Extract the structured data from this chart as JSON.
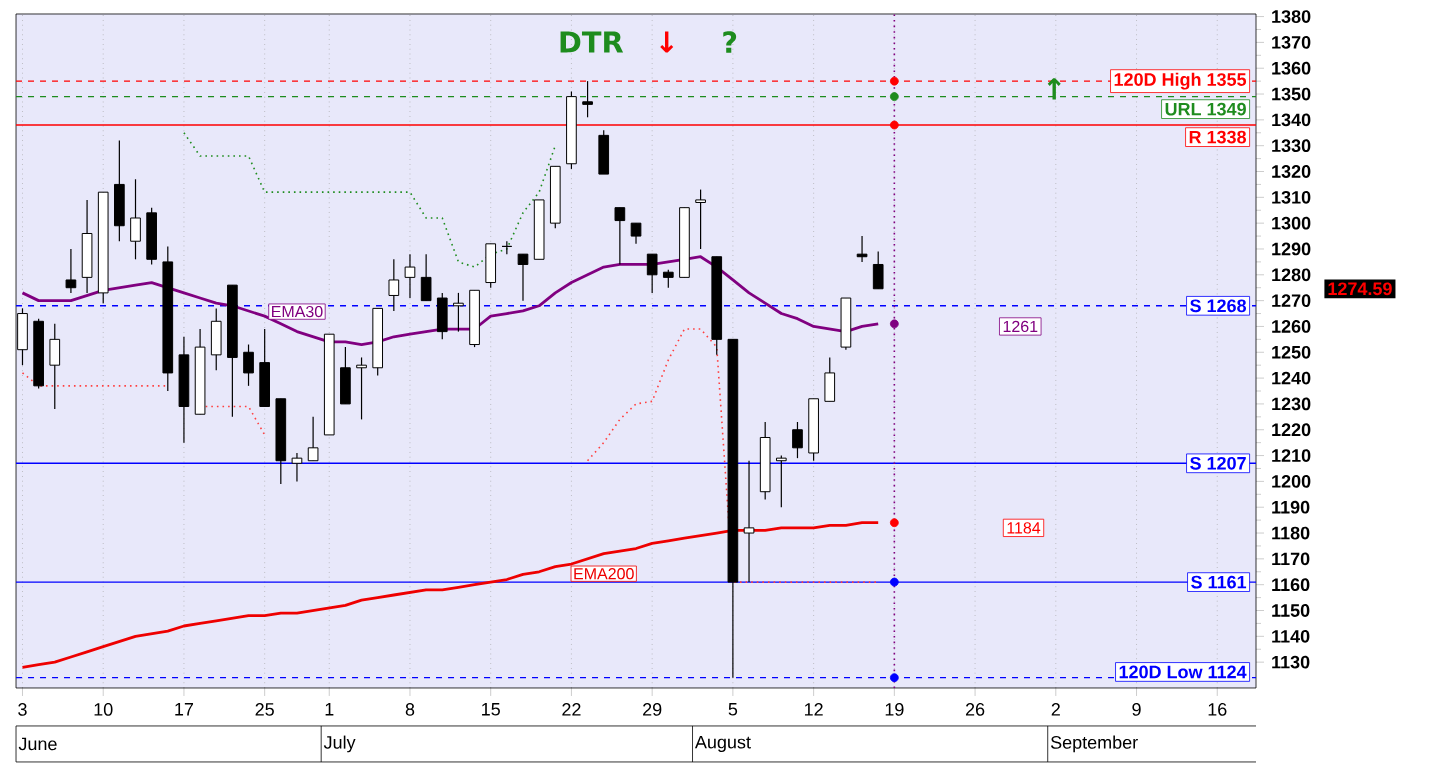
{
  "chart_data": {
    "type": "candlestick",
    "categories": [
      "3",
      null,
      null,
      null,
      null,
      "10",
      null,
      null,
      null,
      null,
      "17",
      null,
      null,
      null,
      null,
      "25",
      null,
      null,
      null,
      "1",
      null,
      null,
      null,
      null,
      "8",
      null,
      null,
      null,
      null,
      "15",
      null,
      null,
      null,
      null,
      "22",
      null,
      null,
      null,
      null,
      "29",
      null,
      null,
      null,
      null,
      "5",
      null,
      null,
      null,
      null,
      "12",
      null,
      null,
      null,
      null,
      "19",
      null,
      null,
      null,
      null,
      "26",
      null,
      null,
      null,
      null,
      "2",
      null,
      null,
      null,
      null,
      "9",
      null,
      null,
      null,
      null,
      "16",
      null,
      null
    ],
    "ohlc": [
      [
        1251,
        1267,
        1245,
        1265
      ],
      [
        1262,
        1263,
        1236,
        1237
      ],
      [
        1245,
        1261,
        1228,
        1255
      ],
      [
        1278,
        1290,
        1273,
        1275
      ],
      [
        1279,
        1309,
        1273,
        1296
      ],
      [
        1273,
        1312,
        1269,
        1312
      ],
      [
        1315,
        1332,
        1293,
        1299
      ],
      [
        1293,
        1317,
        1286,
        1302
      ],
      [
        1304,
        1306,
        1284,
        1286
      ],
      [
        1285,
        1291,
        1235,
        1242
      ],
      [
        1249,
        1256,
        1215,
        1229
      ],
      [
        1226,
        1259,
        1226,
        1252
      ],
      [
        1249,
        1267,
        1243,
        1262
      ],
      [
        1276,
        1276,
        1225,
        1248
      ],
      [
        1250,
        1253,
        1237,
        1242
      ],
      [
        1246,
        1259,
        1229,
        1229
      ],
      [
        1232,
        1232,
        1199,
        1208
      ],
      [
        1207,
        1211,
        1200,
        1209
      ],
      [
        1208,
        1225,
        1208,
        1213
      ],
      [
        1218,
        1257,
        1218,
        1257
      ],
      [
        1244,
        1252,
        1230,
        1230
      ],
      [
        1244,
        1248,
        1224,
        1245
      ],
      [
        1244,
        1267,
        1241,
        1267
      ],
      [
        1272,
        1286,
        1266,
        1278
      ],
      [
        1279,
        1288,
        1271,
        1283
      ],
      [
        1279,
        1288,
        1270,
        1270
      ],
      [
        1271,
        1273,
        1255,
        1258
      ],
      [
        1268,
        1273,
        1258,
        1269
      ],
      [
        1253,
        1274,
        1252,
        1274
      ],
      [
        1277,
        1292,
        1275,
        1292
      ],
      [
        1291,
        1293,
        1288,
        1291
      ],
      [
        1288,
        1288,
        1270,
        1284
      ],
      [
        1286,
        1309,
        1286,
        1309
      ],
      [
        1300,
        1322,
        1298,
        1322
      ],
      [
        1323,
        1351,
        1321,
        1349
      ],
      [
        1347,
        1355,
        1341,
        1346
      ],
      [
        1334,
        1336,
        1319,
        1319
      ],
      [
        1306,
        1306,
        1284,
        1301
      ],
      [
        1300,
        1300,
        1292,
        1295
      ],
      [
        1288,
        1288,
        1273,
        1280
      ],
      [
        1281,
        1282,
        1275,
        1279
      ],
      [
        1279,
        1306,
        1279,
        1306
      ],
      [
        1308,
        1313,
        1290,
        1309
      ],
      [
        1287,
        1287,
        1249,
        1255
      ],
      [
        1255,
        1255,
        1124,
        1161
      ],
      [
        1180,
        1208,
        1161,
        1182
      ],
      [
        1196,
        1223,
        1193,
        1217
      ],
      [
        1208,
        1210,
        1190,
        1209
      ],
      [
        1220,
        1223,
        1209,
        1213
      ],
      [
        1211,
        1232,
        1208,
        1232
      ],
      [
        1231,
        1248,
        1231,
        1242
      ],
      [
        1252,
        1271,
        1251,
        1271
      ],
      [
        1288,
        1295,
        1285,
        1287
      ],
      [
        1284,
        1289,
        1274.59,
        1274.59
      ],
      null,
      null,
      null,
      null,
      null,
      null,
      null,
      null,
      null,
      null,
      null,
      null,
      null,
      null,
      null,
      null,
      null,
      null,
      null,
      null,
      null,
      null,
      null
    ],
    "series": [
      {
        "name": "EMA30",
        "type": "line",
        "color": "#800080",
        "line_style": "solid",
        "values": [
          1273,
          1270,
          1270,
          1270,
          1272,
          1274,
          1275,
          1276,
          1277,
          1275,
          1273,
          1271,
          1269,
          1268,
          1266,
          1264,
          1261,
          1258,
          1256,
          1254,
          1254,
          1253,
          1254,
          1256,
          1257,
          1258,
          1259,
          1259,
          1259,
          1264,
          1265,
          1266,
          1268,
          1273,
          1277,
          1280,
          1283,
          1284,
          1284,
          1284,
          1285,
          1286,
          1287,
          1283,
          1278,
          1273,
          1269,
          1265,
          1263,
          1260,
          1259,
          1258,
          1260,
          1261,
          null,
          null,
          null,
          null,
          null,
          null,
          null,
          null,
          null,
          null,
          null,
          null,
          null,
          null,
          null,
          null,
          null,
          null,
          null,
          null,
          null,
          null,
          null
        ]
      },
      {
        "name": "EMA200",
        "type": "line",
        "color": "#ee0000",
        "line_style": "solid",
        "values": [
          1128,
          1129,
          1130,
          1132,
          1134,
          1136,
          1138,
          1140,
          1141,
          1142,
          1144,
          1145,
          1146,
          1147,
          1148,
          1148,
          1149,
          1149,
          1150,
          1151,
          1152,
          1154,
          1155,
          1156,
          1157,
          1158,
          1158,
          1159,
          1160,
          1161,
          1162,
          1164,
          1165,
          1167,
          1168,
          1170,
          1172,
          1173,
          1174,
          1176,
          1177,
          1178,
          1179,
          1180,
          1181,
          1181,
          1181,
          1182,
          1182,
          1182,
          1183,
          1183,
          1184,
          1184,
          null,
          null,
          null,
          null,
          null,
          null,
          null,
          null,
          null,
          null,
          null,
          null,
          null,
          null,
          null,
          null,
          null,
          null,
          null,
          null,
          null,
          null,
          null
        ]
      },
      {
        "type": "line",
        "color": "#1e8c1e",
        "line_style": "dotted",
        "values": [
          null,
          null,
          null,
          null,
          null,
          null,
          null,
          null,
          null,
          null,
          1335,
          1326,
          1326,
          1326,
          1326,
          1312,
          1312,
          1312,
          1312,
          1312,
          1312,
          1312,
          1312,
          1312,
          1312,
          1302,
          1302,
          1285,
          1283,
          1288,
          1290,
          1304,
          1312,
          1330,
          null,
          null,
          null,
          null,
          null,
          null,
          null,
          null,
          null,
          null,
          null,
          null,
          null,
          null,
          null,
          null,
          null,
          null,
          null,
          null,
          null,
          null,
          null,
          null,
          null,
          null,
          null,
          null,
          null,
          null,
          null,
          null,
          null,
          null,
          null,
          null,
          null,
          null,
          null,
          null,
          null,
          null,
          null
        ]
      },
      {
        "type": "line",
        "color": "#ff4040",
        "line_style": "dotted",
        "values": [
          1242,
          1237,
          1237,
          1237,
          1237,
          1237,
          1237,
          1237,
          1237,
          1237,
          null,
          1229,
          1229,
          1229,
          1229,
          1218,
          null,
          null,
          null,
          null,
          null,
          null,
          null,
          null,
          null,
          null,
          null,
          null,
          null,
          null,
          null,
          null,
          null,
          null,
          null,
          1208,
          1215,
          1224,
          1230,
          1231,
          1247,
          1259,
          1259,
          1252,
          1161,
          1161,
          1161,
          1161,
          1161,
          1161,
          1161,
          1161,
          1161,
          1161,
          null,
          null,
          null,
          null,
          null,
          null,
          null,
          null,
          null,
          null,
          null,
          null,
          null,
          null,
          null,
          null,
          null,
          null,
          null,
          null,
          null,
          null,
          null
        ]
      },
      {
        "type": "scatter",
        "marker": "circle",
        "x": [
          "19",
          "19",
          "19",
          "19",
          "19",
          "19",
          "19"
        ],
        "values": [
          1355,
          1349,
          1338,
          1261,
          1184,
          1161,
          1124
        ],
        "colors": [
          "#ff0000",
          "#1e8c1e",
          "#ff0000",
          "#800080",
          "#ff0000",
          "#0000ff",
          "#0000ff"
        ]
      }
    ],
    "ref_lines": [
      {
        "axis": "y",
        "value": 1355,
        "label": "120D High 1355",
        "color": "#ff0000",
        "line_style": "dashed"
      },
      {
        "axis": "y",
        "value": 1349,
        "label": "URL 1349",
        "color": "#1e8c1e",
        "line_style": "dashed"
      },
      {
        "axis": "y",
        "value": 1338,
        "label": "R 1338",
        "color": "#ff0000",
        "line_style": "solid"
      },
      {
        "axis": "y",
        "value": 1268,
        "label": "S 1268",
        "color": "#0000ff",
        "line_style": "dashed"
      },
      {
        "axis": "y",
        "value": 1207,
        "label": "S 1207",
        "color": "#0000ff",
        "line_style": "solid"
      },
      {
        "axis": "y",
        "value": 1161,
        "label": "S 1161",
        "color": "#0000ff",
        "line_style": "solid"
      },
      {
        "axis": "y",
        "value": 1124,
        "label": "120D Low 1124",
        "color": "#0000ff",
        "line_style": "dashed"
      },
      {
        "axis": "x",
        "value": "19",
        "color": "#800080",
        "line_style": "dotted"
      }
    ],
    "annotations": [
      "DTR",
      "↓",
      "?",
      {
        "text": "↑",
        "y": 1352
      },
      {
        "text": "1261",
        "y": 1260
      },
      {
        "text": "1184",
        "y": 1182
      },
      "1274.59",
      "June",
      "July",
      "August",
      "September"
    ],
    "ylim": [
      1120,
      1381
    ],
    "yticks": [
      1130,
      1140,
      1150,
      1160,
      1170,
      1180,
      1190,
      1200,
      1210,
      1220,
      1230,
      1240,
      1250,
      1260,
      1270,
      1280,
      1290,
      1300,
      1310,
      1320,
      1330,
      1340,
      1350,
      1360,
      1370,
      1380
    ],
    "grid": "x"
  }
}
